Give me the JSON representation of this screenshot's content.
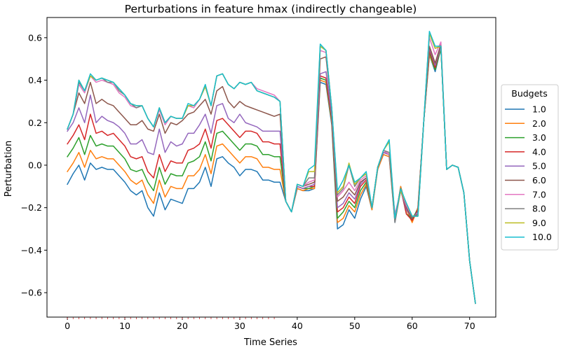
{
  "chart_data": {
    "type": "line",
    "title": "Perturbations in feature hmax (indirectly changeable)",
    "xlabel": "Time Series",
    "ylabel": "Perturbation",
    "xlim": [
      -3.55,
      74.55
    ],
    "ylim": [
      -0.715,
      0.695
    ],
    "xticks": [
      0,
      10,
      20,
      30,
      40,
      50,
      60,
      70
    ],
    "yticks": [
      -0.6,
      -0.4,
      -0.2,
      0.0,
      0.2,
      0.4,
      0.6
    ],
    "grid": false,
    "legend": {
      "title": "Budgets",
      "placement": "right, outside the plot area"
    },
    "series": [
      {
        "name": "1.0",
        "color": "#1f77b4",
        "values": [
          -0.09,
          -0.04,
          0.0,
          -0.07,
          0.01,
          -0.02,
          -0.01,
          -0.02,
          -0.02,
          -0.05,
          -0.08,
          -0.12,
          -0.14,
          -0.12,
          -0.2,
          -0.24,
          -0.13,
          -0.21,
          -0.16,
          -0.17,
          -0.18,
          -0.11,
          -0.11,
          -0.08,
          -0.01,
          -0.1,
          0.03,
          0.04,
          0.01,
          -0.01,
          -0.05,
          -0.02,
          -0.02,
          -0.03,
          -0.07,
          -0.07,
          -0.08,
          -0.08,
          -0.17,
          -0.22,
          -0.11,
          -0.12,
          -0.12,
          -0.11,
          0.39,
          0.38,
          0.19,
          -0.3,
          -0.28,
          -0.21,
          -0.25,
          -0.16,
          -0.1,
          -0.21,
          -0.02,
          0.05,
          0.04,
          -0.27,
          -0.1,
          -0.2,
          -0.26,
          -0.2,
          0.2,
          0.52,
          0.44,
          0.55,
          -0.02,
          0.0,
          -0.01,
          -0.13,
          -0.45,
          -0.65
        ]
      },
      {
        "name": "2.0",
        "color": "#ff7f0e",
        "values": [
          -0.03,
          0.01,
          0.06,
          -0.01,
          0.07,
          0.03,
          0.04,
          0.03,
          0.03,
          0.0,
          -0.03,
          -0.07,
          -0.09,
          -0.07,
          -0.14,
          -0.18,
          -0.07,
          -0.15,
          -0.1,
          -0.11,
          -0.11,
          -0.05,
          -0.05,
          -0.02,
          0.05,
          -0.04,
          0.09,
          0.1,
          0.07,
          0.04,
          0.01,
          0.04,
          0.04,
          0.03,
          -0.01,
          -0.01,
          -0.02,
          -0.02,
          -0.17,
          -0.22,
          -0.11,
          -0.12,
          -0.11,
          -0.11,
          0.4,
          0.39,
          0.2,
          -0.27,
          -0.25,
          -0.19,
          -0.22,
          -0.14,
          -0.09,
          -0.21,
          -0.02,
          0.05,
          0.04,
          -0.26,
          -0.1,
          -0.21,
          -0.27,
          -0.2,
          0.2,
          0.52,
          0.45,
          0.55,
          -0.02,
          0.0,
          -0.01,
          -0.13,
          -0.45,
          -0.65
        ]
      },
      {
        "name": "3.0",
        "color": "#2ca02c",
        "values": [
          0.04,
          0.08,
          0.13,
          0.05,
          0.14,
          0.09,
          0.1,
          0.09,
          0.09,
          0.06,
          0.03,
          -0.02,
          -0.03,
          -0.02,
          -0.08,
          -0.12,
          -0.01,
          -0.09,
          -0.04,
          -0.05,
          -0.05,
          0.01,
          0.02,
          0.04,
          0.11,
          0.02,
          0.15,
          0.16,
          0.13,
          0.1,
          0.07,
          0.1,
          0.1,
          0.09,
          0.05,
          0.05,
          0.04,
          0.04,
          -0.17,
          -0.22,
          -0.1,
          -0.11,
          -0.11,
          -0.1,
          0.41,
          0.4,
          0.21,
          -0.25,
          -0.22,
          -0.17,
          -0.2,
          -0.12,
          -0.08,
          -0.2,
          -0.01,
          0.06,
          0.05,
          -0.25,
          -0.11,
          -0.23,
          -0.25,
          -0.21,
          0.2,
          0.53,
          0.45,
          0.55,
          -0.02,
          0.0,
          -0.01,
          -0.13,
          -0.45,
          -0.65
        ]
      },
      {
        "name": "4.0",
        "color": "#d62728",
        "values": [
          0.1,
          0.14,
          0.19,
          0.12,
          0.24,
          0.15,
          0.16,
          0.14,
          0.15,
          0.12,
          0.09,
          0.04,
          0.03,
          0.04,
          -0.03,
          -0.06,
          0.05,
          -0.03,
          0.02,
          0.01,
          0.01,
          0.07,
          0.08,
          0.1,
          0.17,
          0.08,
          0.21,
          0.22,
          0.19,
          0.16,
          0.13,
          0.16,
          0.16,
          0.15,
          0.11,
          0.11,
          0.1,
          0.1,
          -0.17,
          -0.22,
          -0.1,
          -0.11,
          -0.1,
          -0.1,
          0.42,
          0.41,
          0.22,
          -0.22,
          -0.2,
          -0.15,
          -0.18,
          -0.1,
          -0.07,
          -0.2,
          -0.01,
          0.06,
          0.05,
          -0.25,
          -0.11,
          -0.23,
          -0.26,
          -0.21,
          0.2,
          0.54,
          0.46,
          0.56,
          -0.02,
          0.0,
          -0.01,
          -0.13,
          -0.45,
          -0.65
        ]
      },
      {
        "name": "5.0",
        "color": "#9467bd",
        "values": [
          0.16,
          0.2,
          0.27,
          0.2,
          0.33,
          0.2,
          0.23,
          0.21,
          0.2,
          0.18,
          0.15,
          0.1,
          0.1,
          0.12,
          0.06,
          0.05,
          0.17,
          0.06,
          0.11,
          0.09,
          0.1,
          0.15,
          0.15,
          0.19,
          0.24,
          0.15,
          0.28,
          0.29,
          0.22,
          0.2,
          0.24,
          0.2,
          0.19,
          0.18,
          0.16,
          0.16,
          0.16,
          0.16,
          -0.17,
          -0.22,
          -0.1,
          -0.11,
          -0.1,
          -0.09,
          0.43,
          0.44,
          0.23,
          -0.2,
          -0.18,
          -0.13,
          -0.16,
          -0.09,
          -0.06,
          -0.2,
          -0.01,
          0.06,
          0.05,
          -0.24,
          -0.12,
          -0.21,
          -0.25,
          -0.22,
          0.2,
          0.55,
          0.47,
          0.56,
          -0.02,
          0.0,
          -0.01,
          -0.13,
          -0.45,
          -0.65
        ]
      },
      {
        "name": "6.0",
        "color": "#8c564b",
        "values": [
          0.17,
          0.24,
          0.34,
          0.29,
          0.39,
          0.29,
          0.31,
          0.29,
          0.28,
          0.25,
          0.22,
          0.19,
          0.19,
          0.21,
          0.17,
          0.16,
          0.24,
          0.15,
          0.2,
          0.19,
          0.21,
          0.24,
          0.25,
          0.28,
          0.31,
          0.24,
          0.35,
          0.37,
          0.3,
          0.27,
          0.3,
          0.28,
          0.27,
          0.26,
          0.25,
          0.24,
          0.23,
          0.24,
          -0.17,
          -0.22,
          -0.09,
          -0.1,
          -0.09,
          -0.08,
          0.5,
          0.51,
          0.25,
          -0.17,
          -0.15,
          -0.11,
          -0.14,
          -0.08,
          -0.06,
          -0.2,
          -0.01,
          0.07,
          0.05,
          -0.24,
          -0.12,
          -0.2,
          -0.25,
          -0.23,
          0.2,
          0.56,
          0.48,
          0.57,
          -0.02,
          0.0,
          -0.01,
          -0.13,
          -0.45,
          -0.65
        ]
      },
      {
        "name": "7.0",
        "color": "#e377c2",
        "values": [
          0.17,
          0.24,
          0.38,
          0.34,
          0.42,
          0.39,
          0.4,
          0.39,
          0.38,
          0.34,
          0.32,
          0.28,
          0.27,
          0.28,
          0.22,
          0.18,
          0.26,
          0.19,
          0.23,
          0.22,
          0.22,
          0.28,
          0.27,
          0.31,
          0.37,
          0.28,
          0.42,
          0.43,
          0.38,
          0.36,
          0.39,
          0.38,
          0.39,
          0.36,
          0.35,
          0.34,
          0.33,
          0.3,
          -0.17,
          -0.22,
          -0.09,
          -0.1,
          -0.08,
          -0.07,
          0.54,
          0.53,
          0.26,
          -0.15,
          -0.12,
          -0.08,
          -0.12,
          -0.07,
          -0.05,
          -0.2,
          -0.01,
          0.07,
          0.05,
          -0.23,
          -0.12,
          -0.19,
          -0.24,
          -0.24,
          0.2,
          0.6,
          0.52,
          0.58,
          -0.02,
          0.0,
          -0.01,
          -0.13,
          -0.45,
          -0.65
        ]
      },
      {
        "name": "8.0",
        "color": "#7f7f7f",
        "values": [
          0.17,
          0.24,
          0.39,
          0.35,
          0.42,
          0.4,
          0.41,
          0.39,
          0.39,
          0.35,
          0.33,
          0.29,
          0.27,
          0.28,
          0.22,
          0.18,
          0.27,
          0.2,
          0.23,
          0.22,
          0.22,
          0.28,
          0.28,
          0.31,
          0.37,
          0.28,
          0.42,
          0.43,
          0.38,
          0.36,
          0.39,
          0.38,
          0.39,
          0.35,
          0.34,
          0.33,
          0.32,
          0.3,
          -0.17,
          -0.22,
          -0.09,
          -0.1,
          -0.06,
          -0.06,
          0.56,
          0.54,
          0.27,
          -0.14,
          -0.11,
          0.0,
          -0.1,
          -0.06,
          -0.04,
          -0.2,
          -0.01,
          0.07,
          0.06,
          -0.27,
          -0.12,
          -0.18,
          -0.24,
          -0.24,
          0.2,
          0.62,
          0.55,
          0.56,
          -0.02,
          0.0,
          -0.01,
          -0.13,
          -0.45,
          -0.65
        ]
      },
      {
        "name": "9.0",
        "color": "#bcbd22",
        "values": [
          0.17,
          0.24,
          0.4,
          0.35,
          0.42,
          0.4,
          0.41,
          0.4,
          0.39,
          0.36,
          0.33,
          0.29,
          0.28,
          0.28,
          0.22,
          0.18,
          0.27,
          0.2,
          0.23,
          0.22,
          0.22,
          0.28,
          0.28,
          0.31,
          0.37,
          0.28,
          0.42,
          0.43,
          0.38,
          0.36,
          0.39,
          0.38,
          0.39,
          0.35,
          0.34,
          0.33,
          0.32,
          0.3,
          -0.17,
          -0.22,
          -0.09,
          -0.1,
          -0.03,
          -0.03,
          0.56,
          0.54,
          0.27,
          -0.13,
          -0.1,
          0.01,
          -0.09,
          -0.06,
          -0.04,
          -0.2,
          -0.01,
          0.07,
          0.11,
          -0.25,
          -0.12,
          -0.18,
          -0.24,
          -0.24,
          0.2,
          0.62,
          0.55,
          0.56,
          -0.02,
          0.0,
          -0.01,
          -0.13,
          -0.45,
          -0.65
        ]
      },
      {
        "name": "10.0",
        "color": "#17becf",
        "values": [
          0.17,
          0.24,
          0.4,
          0.35,
          0.43,
          0.4,
          0.41,
          0.4,
          0.39,
          0.36,
          0.33,
          0.29,
          0.28,
          0.28,
          0.22,
          0.18,
          0.27,
          0.2,
          0.23,
          0.22,
          0.22,
          0.29,
          0.28,
          0.31,
          0.38,
          0.28,
          0.42,
          0.43,
          0.38,
          0.36,
          0.39,
          0.38,
          0.39,
          0.35,
          0.34,
          0.33,
          0.32,
          0.3,
          -0.17,
          -0.22,
          -0.09,
          -0.1,
          -0.02,
          0.0,
          0.57,
          0.54,
          0.27,
          -0.12,
          -0.07,
          0.0,
          -0.08,
          -0.06,
          -0.03,
          -0.2,
          -0.01,
          0.07,
          0.12,
          -0.25,
          -0.11,
          -0.18,
          -0.24,
          -0.24,
          0.2,
          0.63,
          0.56,
          0.56,
          -0.02,
          0.0,
          -0.01,
          -0.13,
          -0.45,
          -0.65
        ]
      }
    ]
  }
}
